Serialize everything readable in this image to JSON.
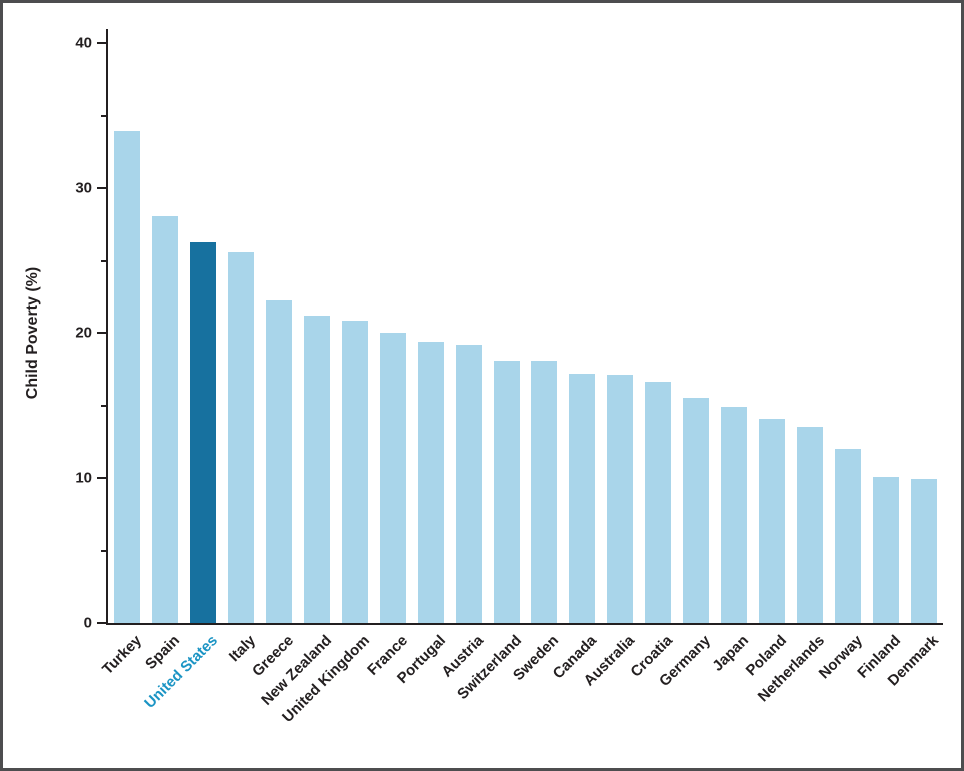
{
  "chart_data": {
    "type": "bar",
    "title": "",
    "ylabel": "Child Poverty (%)",
    "xlabel": "",
    "ylim": [
      0,
      40
    ],
    "yticks_major": [
      0,
      10,
      20,
      30,
      40
    ],
    "ytick_minor_step": 5,
    "grid": false,
    "legend": "none",
    "highlight_category": "United States",
    "categories": [
      "Turkey",
      "Spain",
      "United States",
      "Italy",
      "Greece",
      "New Zealand",
      "United Kingdom",
      "France",
      "Portugal",
      "Austria",
      "Switzerland",
      "Sweden",
      "Canada",
      "Australia",
      "Croatia",
      "Germany",
      "Japan",
      "Poland",
      "Netherlands",
      "Norway",
      "Finland",
      "Denmark"
    ],
    "values": [
      33.9,
      28.1,
      26.3,
      25.6,
      22.3,
      21.2,
      20.8,
      20.0,
      19.4,
      19.2,
      18.1,
      18.1,
      17.2,
      17.1,
      16.6,
      15.5,
      14.9,
      14.1,
      13.5,
      12.0,
      10.1,
      9.9
    ],
    "colors": {
      "bar": "#a9d5ea",
      "highlight_bar": "#17719f",
      "highlight_label": "#1b94c4",
      "axis": "#231f20",
      "text": "#231f20",
      "frame": "#4d4d4f",
      "background": "#ffffff"
    }
  }
}
